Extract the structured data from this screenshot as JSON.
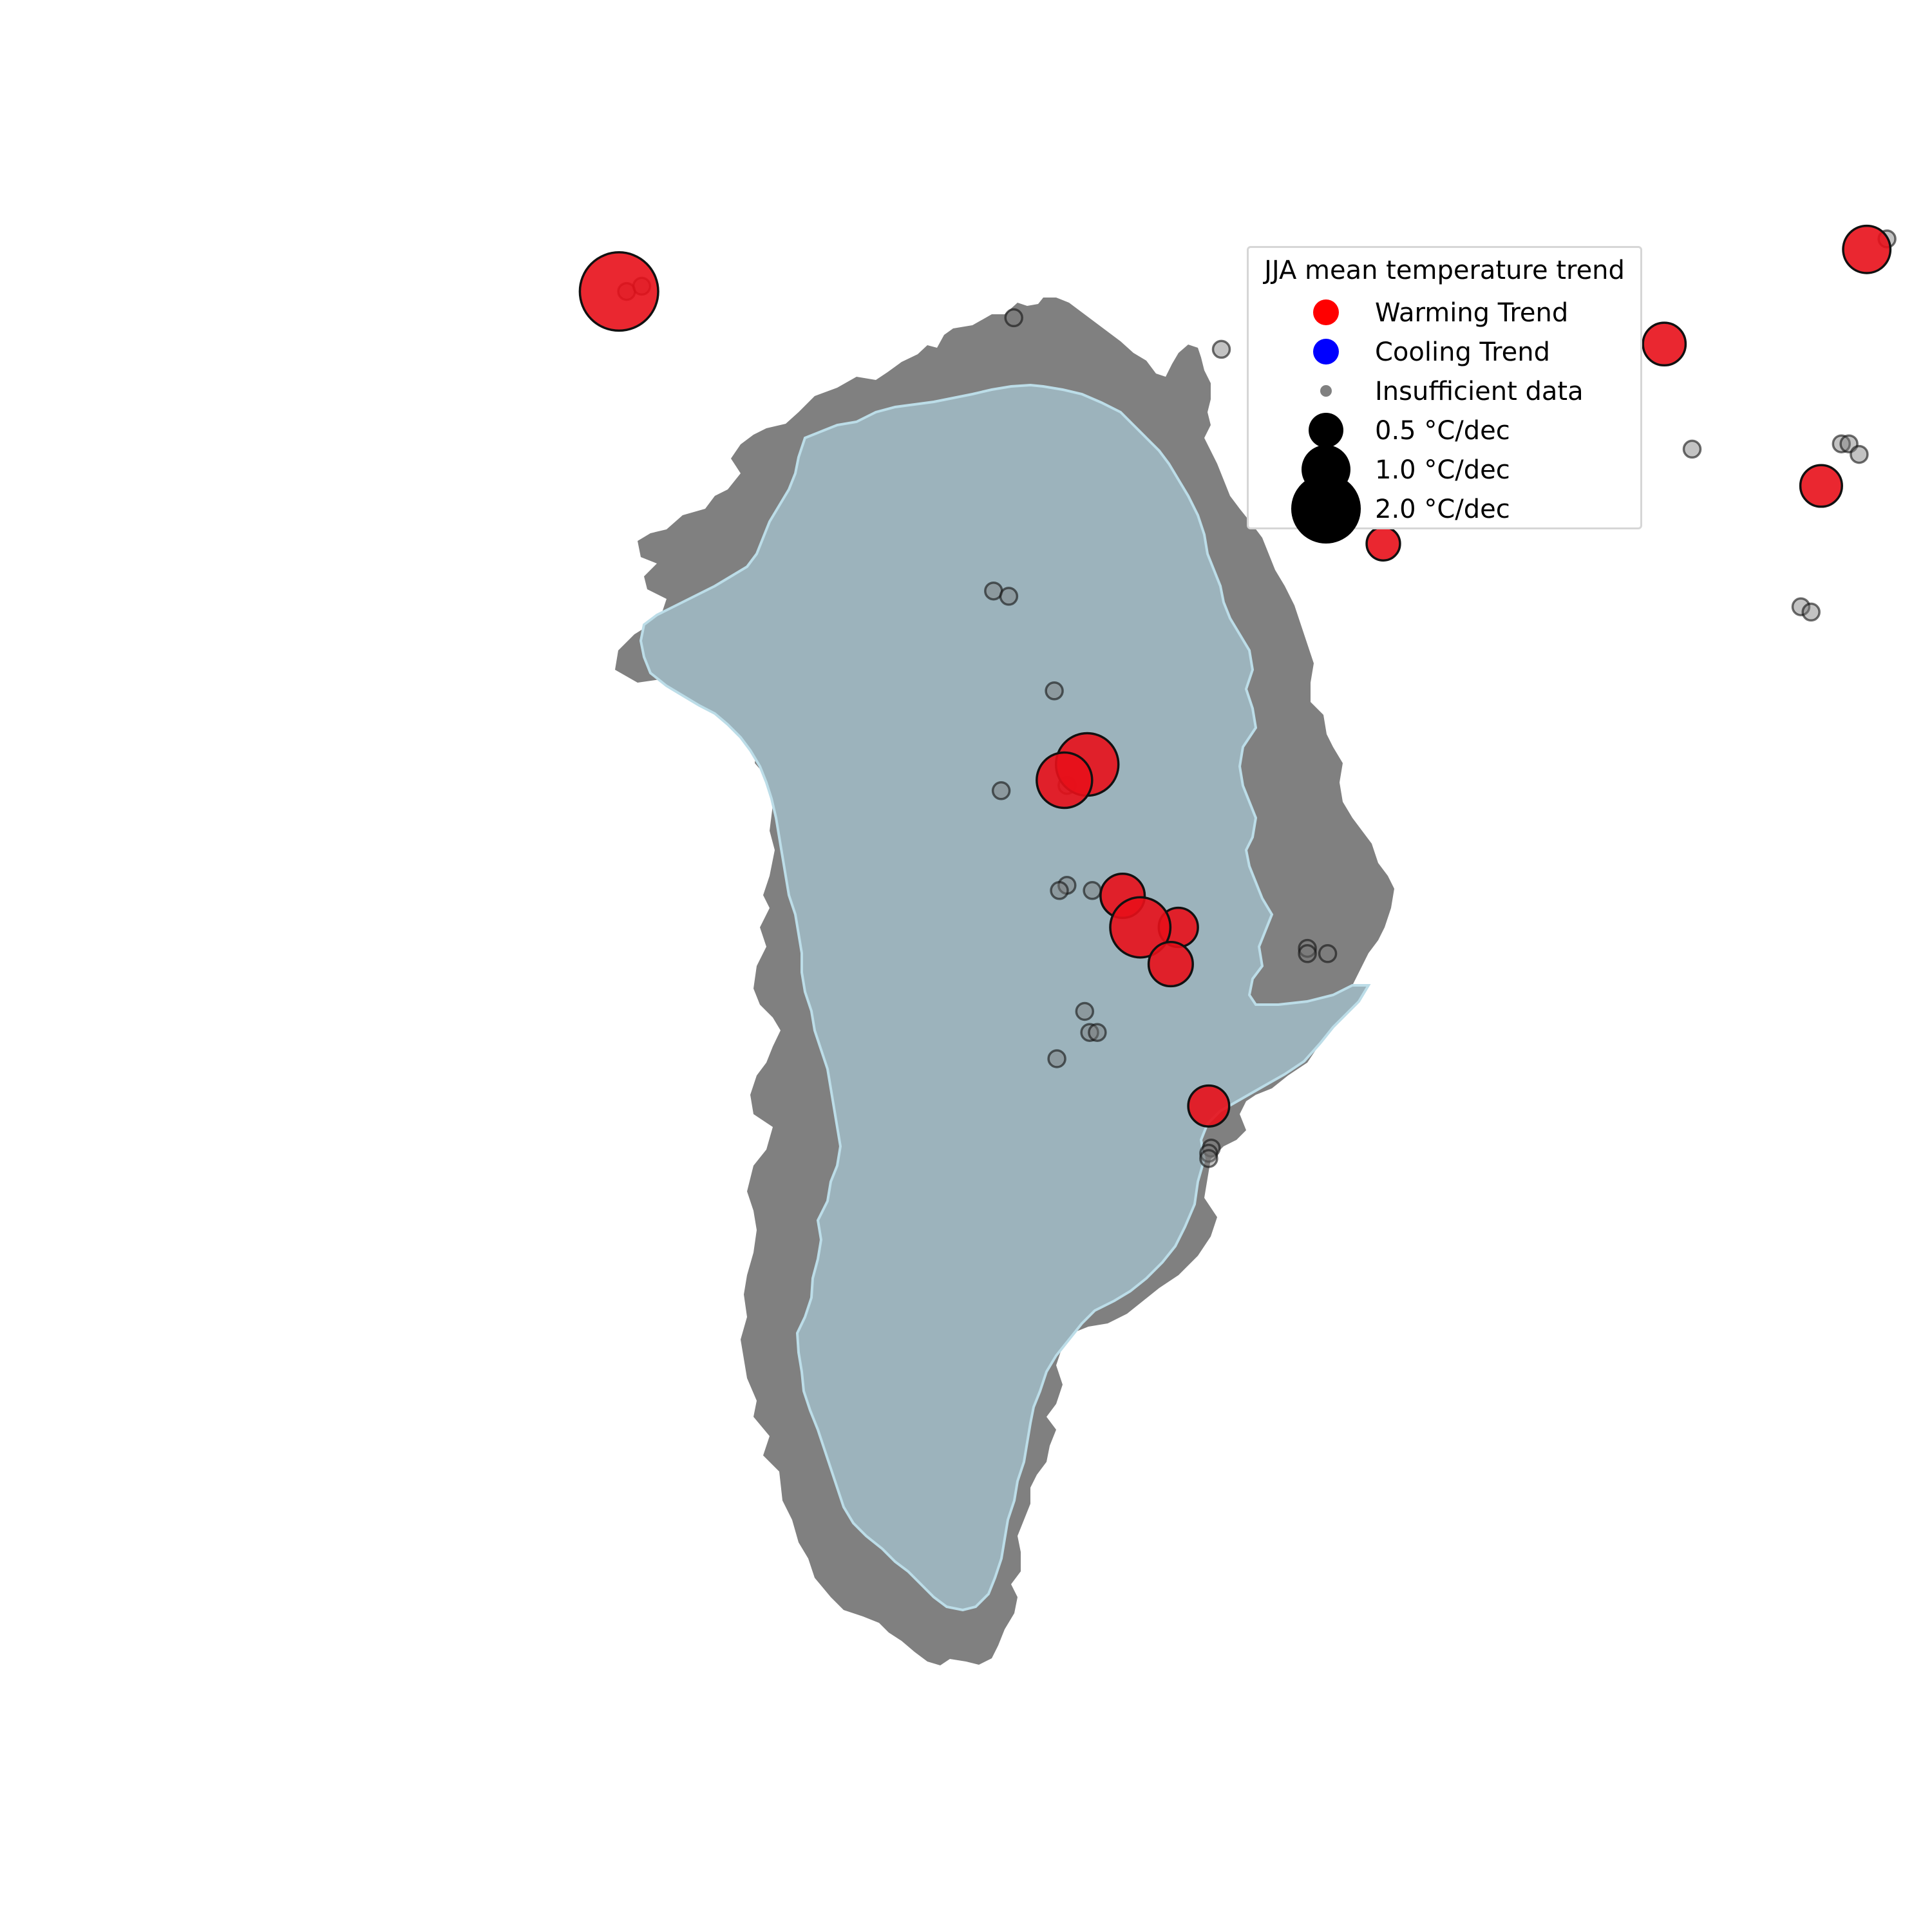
{
  "map": {
    "region": "Greenland",
    "colors": {
      "ice_sheet": "#9cb3bc",
      "ice_edge": "#bcdde8",
      "land": "#808080",
      "warming": "#e8101a",
      "cooling": "#0000ff",
      "insufficient": "#7a7a7a",
      "marker_edge": "#111111"
    }
  },
  "legend": {
    "title": "JJA mean temperature trend",
    "items": [
      {
        "label": "Warming Trend",
        "kind": "color",
        "color": "#ff0000"
      },
      {
        "label": "Cooling Trend",
        "kind": "color",
        "color": "#0000ff"
      },
      {
        "label": "Insufficient data",
        "kind": "dot",
        "color": "#808080"
      },
      {
        "label": "0.5 °C/dec",
        "kind": "size",
        "value": 0.5,
        "color": "#000000"
      },
      {
        "label": "1.0 °C/dec",
        "kind": "size",
        "value": 1.0,
        "color": "#000000"
      },
      {
        "label": "2.0 °C/dec",
        "kind": "size",
        "value": 2.0,
        "color": "#000000"
      }
    ]
  },
  "stations": [
    {
      "lat": 77.3,
      "lon": -19.5,
      "status": "warming",
      "trend": 0.8
    },
    {
      "lat": 77.5,
      "lon": -18.7,
      "status": "insufficient"
    },
    {
      "lat": 76.4,
      "lon": -40.3,
      "status": "insufficient"
    },
    {
      "lat": 75.5,
      "lon": -27.5,
      "status": "warming",
      "trend": 0.65
    },
    {
      "lat": 76.5,
      "lon": -68.8,
      "status": "warming",
      "trend": 2.2
    },
    {
      "lat": 76.5,
      "lon": -68.5,
      "status": "insufficient"
    },
    {
      "lat": 76.6,
      "lon": -67.9,
      "status": "insufficient"
    },
    {
      "lat": 76.0,
      "lon": -53.2,
      "status": "insufficient"
    },
    {
      "lat": 75.4,
      "lon": -45.0,
      "status": "insufficient"
    },
    {
      "lat": 73.5,
      "lon": -26.4,
      "status": "insufficient"
    },
    {
      "lat": 72.8,
      "lon": -21.3,
      "status": "warming",
      "trend": 0.62
    },
    {
      "lat": 73.6,
      "lon": -20.5,
      "status": "insufficient"
    },
    {
      "lat": 73.6,
      "lon": -20.2,
      "status": "insufficient"
    },
    {
      "lat": 73.4,
      "lon": -19.8,
      "status": "insufficient"
    },
    {
      "lat": 71.7,
      "lon": -38.6,
      "status": "warming",
      "trend": 0.4
    },
    {
      "lat": 70.8,
      "lon": -54.0,
      "status": "insufficient"
    },
    {
      "lat": 70.7,
      "lon": -53.4,
      "status": "insufficient"
    },
    {
      "lat": 70.5,
      "lon": -22.1,
      "status": "insufficient"
    },
    {
      "lat": 70.4,
      "lon": -21.7,
      "status": "insufficient"
    },
    {
      "lat": 68.9,
      "lon": -51.6,
      "status": "insufficient"
    },
    {
      "lat": 67.5,
      "lon": -50.3,
      "status": "warming",
      "trend": 1.4
    },
    {
      "lat": 67.2,
      "lon": -51.2,
      "status": "warming",
      "trend": 1.1
    },
    {
      "lat": 67.1,
      "lon": -51.1,
      "status": "insufficient"
    },
    {
      "lat": 67.0,
      "lon": -53.7,
      "status": "insufficient"
    },
    {
      "lat": 65.2,
      "lon": -51.1,
      "status": "insufficient"
    },
    {
      "lat": 65.1,
      "lon": -51.4,
      "status": "insufficient"
    },
    {
      "lat": 65.1,
      "lon": -50.1,
      "status": "insufficient"
    },
    {
      "lat": 65.0,
      "lon": -48.9,
      "status": "warming",
      "trend": 0.7
    },
    {
      "lat": 64.4,
      "lon": -46.7,
      "status": "warming",
      "trend": 0.55
    },
    {
      "lat": 64.4,
      "lon": -48.2,
      "status": "warming",
      "trend": 1.3
    },
    {
      "lat": 63.7,
      "lon": -47.0,
      "status": "warming",
      "trend": 0.7
    },
    {
      "lat": 64.0,
      "lon": -41.6,
      "status": "insufficient"
    },
    {
      "lat": 63.9,
      "lon": -41.6,
      "status": "insufficient"
    },
    {
      "lat": 63.9,
      "lon": -40.8,
      "status": "insufficient"
    },
    {
      "lat": 62.8,
      "lon": -50.4,
      "status": "insufficient"
    },
    {
      "lat": 62.4,
      "lon": -50.2,
      "status": "insufficient"
    },
    {
      "lat": 62.4,
      "lon": -49.9,
      "status": "insufficient"
    },
    {
      "lat": 61.9,
      "lon": -51.5,
      "status": "insufficient"
    },
    {
      "lat": 61.0,
      "lon": -45.5,
      "status": "warming",
      "trend": 0.6
    },
    {
      "lat": 60.2,
      "lon": -45.4,
      "status": "insufficient"
    },
    {
      "lat": 60.1,
      "lon": -45.5,
      "status": "insufficient"
    },
    {
      "lat": 60.0,
      "lon": -45.5,
      "status": "insufficient"
    }
  ]
}
